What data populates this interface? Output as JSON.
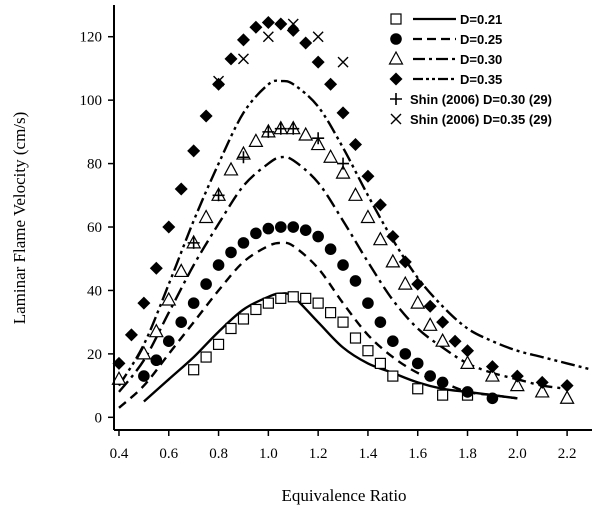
{
  "chart_data": {
    "type": "scatter",
    "title": "",
    "xlabel": "Equivalence Ratio",
    "ylabel": "Laminar Flame Velocity (cm/s)",
    "xlim": [
      0.38,
      2.3
    ],
    "ylim": [
      -4,
      130
    ],
    "xticks": [
      0.4,
      0.6,
      0.8,
      1.0,
      1.2,
      1.4,
      1.6,
      1.8,
      2.0,
      2.2
    ],
    "xtick_labels": [
      "0.4",
      "0.6",
      "0.8",
      "1.0",
      "1.2",
      "1.4",
      "1.6",
      "1.8",
      "2.0",
      "2.2"
    ],
    "yticks": [
      0,
      20,
      40,
      60,
      80,
      100,
      120
    ],
    "ytick_labels": [
      "0",
      "20",
      "40",
      "60",
      "80",
      "100",
      "120"
    ],
    "legend_position": "top-right",
    "series": [
      {
        "name": "D=0.21",
        "marker": "open-square",
        "line_style": "solid",
        "points_x": [
          0.7,
          0.75,
          0.8,
          0.85,
          0.9,
          0.95,
          1.0,
          1.05,
          1.1,
          1.15,
          1.2,
          1.25,
          1.3,
          1.35,
          1.4,
          1.45,
          1.5,
          1.6,
          1.7,
          1.8
        ],
        "points_y": [
          15,
          19,
          23,
          28,
          31,
          34,
          36,
          37.5,
          38,
          37.5,
          36,
          33,
          30,
          25,
          21,
          17,
          13,
          9,
          7,
          7
        ],
        "curve_x": [
          0.5,
          0.6,
          0.7,
          0.8,
          0.9,
          1.0,
          1.05,
          1.1,
          1.2,
          1.3,
          1.4,
          1.5,
          1.6,
          1.7,
          1.8,
          1.9,
          2.0
        ],
        "curve_y": [
          5,
          12,
          19,
          27,
          34,
          38,
          39,
          38,
          30,
          22,
          17,
          14,
          11,
          9,
          8,
          7,
          6
        ]
      },
      {
        "name": "D=0.25",
        "marker": "filled-circle",
        "line_style": "dashed",
        "points_x": [
          0.5,
          0.55,
          0.6,
          0.65,
          0.7,
          0.75,
          0.8,
          0.85,
          0.9,
          0.95,
          1.0,
          1.05,
          1.1,
          1.15,
          1.2,
          1.25,
          1.3,
          1.35,
          1.4,
          1.45,
          1.5,
          1.55,
          1.6,
          1.65,
          1.7,
          1.8,
          1.9
        ],
        "points_y": [
          13,
          18,
          24,
          30,
          36,
          42,
          48,
          52,
          55,
          58,
          59.5,
          60,
          60,
          59,
          57,
          53,
          48,
          43,
          36,
          30,
          24,
          20,
          17,
          13,
          11,
          8,
          6
        ],
        "curve_x": [
          0.4,
          0.5,
          0.6,
          0.7,
          0.8,
          0.9,
          1.0,
          1.05,
          1.1,
          1.2,
          1.3,
          1.4,
          1.5,
          1.6,
          1.7,
          1.8,
          1.9,
          2.0
        ],
        "curve_y": [
          3,
          10,
          20,
          30,
          40,
          49,
          54,
          55,
          54,
          47,
          36,
          26,
          19,
          14,
          11,
          8,
          7,
          6
        ]
      },
      {
        "name": "D=0.30",
        "marker": "open-triangle",
        "line_style": "dash-dot",
        "points_x": [
          0.4,
          0.5,
          0.55,
          0.6,
          0.65,
          0.7,
          0.75,
          0.8,
          0.85,
          0.9,
          0.95,
          1.0,
          1.05,
          1.1,
          1.15,
          1.2,
          1.25,
          1.3,
          1.35,
          1.4,
          1.45,
          1.5,
          1.55,
          1.6,
          1.65,
          1.7,
          1.8,
          1.9,
          2.0,
          2.1,
          2.2
        ],
        "points_y": [
          12,
          20,
          27,
          37,
          46,
          55,
          63,
          70,
          78,
          83,
          87,
          90,
          91,
          91,
          89,
          86,
          82,
          77,
          70,
          63,
          56,
          49,
          42,
          36,
          29,
          24,
          17,
          13,
          10,
          8,
          6
        ],
        "curve_x": [
          0.4,
          0.5,
          0.6,
          0.7,
          0.8,
          0.9,
          1.0,
          1.05,
          1.1,
          1.2,
          1.3,
          1.4,
          1.5,
          1.6,
          1.7,
          1.8,
          1.9,
          2.0,
          2.1,
          2.2
        ],
        "curve_y": [
          8,
          18,
          33,
          48,
          61,
          73,
          80,
          82,
          81,
          74,
          62,
          49,
          37,
          28,
          22,
          17,
          14,
          12,
          10,
          9
        ]
      },
      {
        "name": "D=0.35",
        "marker": "filled-diamond",
        "line_style": "dash-dot-dot",
        "points_x": [
          0.4,
          0.45,
          0.5,
          0.55,
          0.6,
          0.65,
          0.7,
          0.75,
          0.8,
          0.85,
          0.9,
          0.95,
          1.0,
          1.05,
          1.1,
          1.15,
          1.2,
          1.25,
          1.3,
          1.35,
          1.4,
          1.45,
          1.5,
          1.55,
          1.6,
          1.65,
          1.7,
          1.75,
          1.8,
          1.9,
          2.0,
          2.1,
          2.2,
          2.3
        ],
        "points_y": [
          17,
          26,
          36,
          47,
          60,
          72,
          84,
          95,
          105,
          113,
          119,
          123,
          124.5,
          124,
          122,
          118,
          112,
          105,
          96,
          86,
          76,
          67,
          57,
          49,
          42,
          35,
          30,
          24,
          21,
          16,
          13,
          11,
          10,
          8
        ],
        "curve_x": [
          0.4,
          0.5,
          0.6,
          0.7,
          0.8,
          0.9,
          1.0,
          1.05,
          1.1,
          1.2,
          1.3,
          1.4,
          1.5,
          1.6,
          1.7,
          1.8,
          1.9,
          2.0,
          2.1,
          2.2,
          2.3
        ],
        "curve_y": [
          10,
          23,
          42,
          62,
          80,
          96,
          105,
          106,
          105,
          98,
          85,
          70,
          56,
          44,
          35,
          28,
          24,
          21,
          19,
          17,
          15
        ]
      },
      {
        "name": "Shin (2006) D=0.30 (29)",
        "marker": "plus",
        "line_style": "none",
        "points_x": [
          0.7,
          0.8,
          0.9,
          1.0,
          1.05,
          1.1,
          1.2,
          1.3
        ],
        "points_y": [
          55,
          70,
          82,
          90,
          91,
          91,
          88,
          80
        ]
      },
      {
        "name": "Shin (2006) D=0.35 (29)",
        "marker": "cross",
        "line_style": "none",
        "points_x": [
          0.8,
          0.9,
          1.0,
          1.1,
          1.2,
          1.3
        ],
        "points_y": [
          106,
          113,
          120,
          124,
          120,
          112
        ]
      }
    ]
  }
}
